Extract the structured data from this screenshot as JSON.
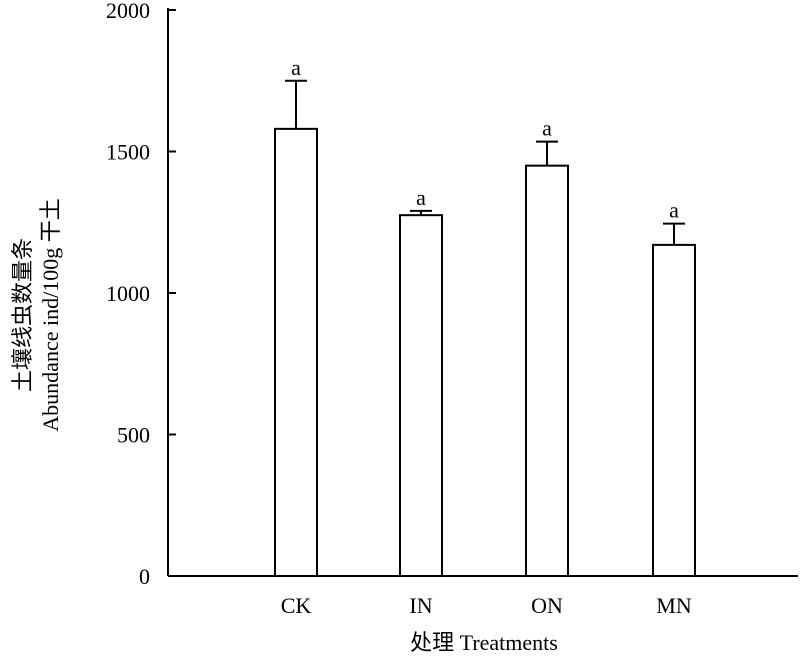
{
  "chart_data": {
    "type": "bar",
    "categories": [
      "CK",
      "IN",
      "ON",
      "MN"
    ],
    "values": [
      1580,
      1275,
      1450,
      1170
    ],
    "error_upper": [
      1750,
      1290,
      1535,
      1245
    ],
    "significance": [
      "a",
      "a",
      "a",
      "a"
    ],
    "ylim": [
      0,
      2000
    ],
    "yticks": [
      0,
      500,
      1000,
      1500,
      2000
    ],
    "xlabel": "处理 Treatments",
    "ylabel_line1": "土壤线虫数量条",
    "ylabel_line2": "Abundance ind/100g 干土",
    "grid": false,
    "legend": "none"
  }
}
